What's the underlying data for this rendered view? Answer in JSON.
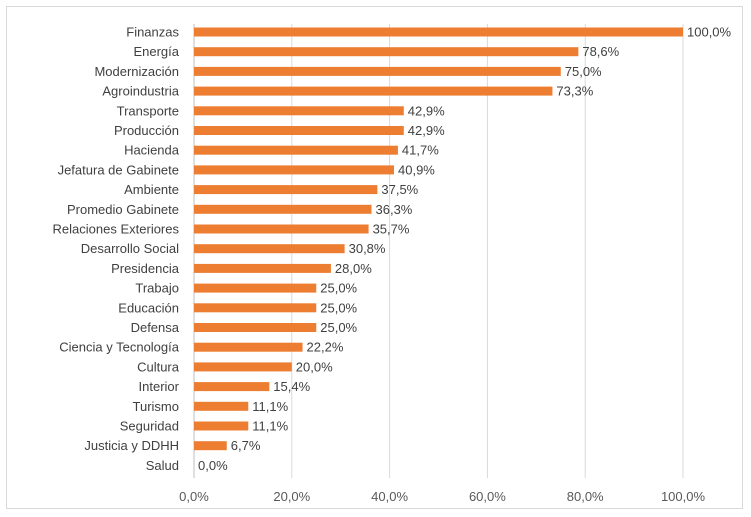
{
  "chart_data": {
    "type": "bar",
    "orientation": "horizontal",
    "categories": [
      "Finanzas",
      "Energía",
      "Modernización",
      "Agroindustria",
      "Transporte",
      "Producción",
      "Hacienda",
      "Jefatura de Gabinete",
      "Ambiente",
      "Promedio Gabinete",
      "Relaciones Exteriores",
      "Desarrollo Social",
      "Presidencia",
      "Trabajo",
      "Educación",
      "Defensa",
      "Ciencia y Tecnología",
      "Cultura",
      "Interior",
      "Turismo",
      "Seguridad",
      "Justicia y DDHH",
      "Salud"
    ],
    "values": [
      100.0,
      78.6,
      75.0,
      73.3,
      42.9,
      42.9,
      41.7,
      40.9,
      37.5,
      36.3,
      35.7,
      30.8,
      28.0,
      25.0,
      25.0,
      25.0,
      22.2,
      20.0,
      15.4,
      11.1,
      11.1,
      6.7,
      0.0
    ],
    "value_labels": [
      "100,0%",
      "78,6%",
      "75,0%",
      "73,3%",
      "42,9%",
      "42,9%",
      "41,7%",
      "40,9%",
      "37,5%",
      "36,3%",
      "35,7%",
      "30,8%",
      "28,0%",
      "25,0%",
      "25,0%",
      "25,0%",
      "22,2%",
      "20,0%",
      "15,4%",
      "11,1%",
      "11,1%",
      "6,7%",
      "0,0%"
    ],
    "xlim": [
      0,
      100
    ],
    "x_ticks": [
      0,
      20,
      40,
      60,
      80,
      100
    ],
    "x_tick_labels": [
      "0,0%",
      "20,0%",
      "40,0%",
      "60,0%",
      "80,0%",
      "100,0%"
    ],
    "title": "",
    "xlabel": "",
    "ylabel": "",
    "grid": "vertical",
    "legend": "none",
    "colors": {
      "bar": "#ED7D31",
      "grid": "#d9d9d9",
      "axis": "#bfbfbf"
    }
  }
}
